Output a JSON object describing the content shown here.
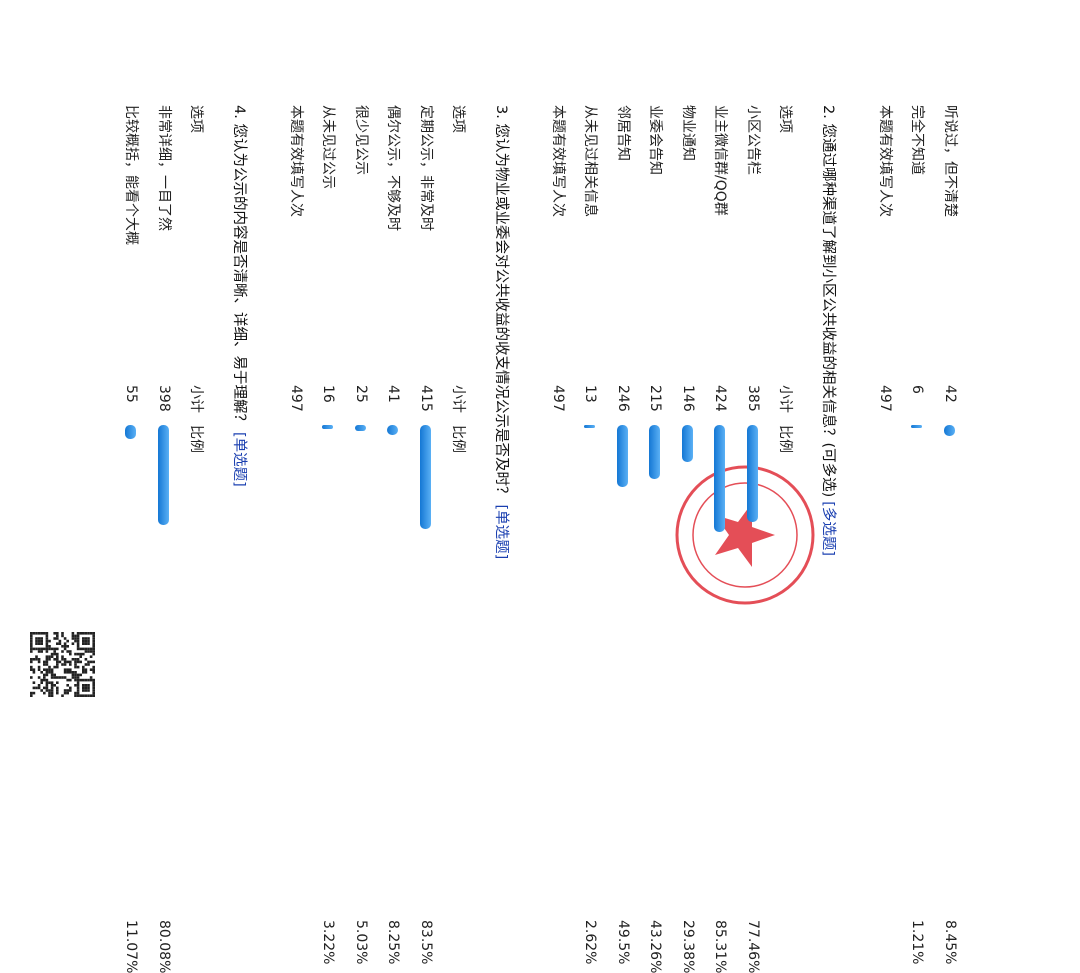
{
  "sections": [
    {
      "rows": [
        {
          "option": "听说过，但不清楚",
          "count": 42,
          "percent": 8.45,
          "percent_label": "8.45%"
        },
        {
          "option": "完全不知道",
          "count": 6,
          "percent": 1.21,
          "percent_label": "1.21%"
        }
      ],
      "total_label": "本题有效填写人次",
      "total": 497
    },
    {
      "title": "2. 您通过哪种渠道了解到小区公共收益的相关信息？(可多选)",
      "tag": "[多选题]",
      "headers": [
        "选项",
        "小计",
        "比例"
      ],
      "rows": [
        {
          "option": "小区公告栏",
          "count": 385,
          "percent": 77.46,
          "percent_label": "77.46%"
        },
        {
          "option": "业主微信群/QQ群",
          "count": 424,
          "percent": 85.31,
          "percent_label": "85.31%"
        },
        {
          "option": "物业通知",
          "count": 146,
          "percent": 29.38,
          "percent_label": "29.38%"
        },
        {
          "option": "业委会告知",
          "count": 215,
          "percent": 43.26,
          "percent_label": "43.26%"
        },
        {
          "option": "邻居告知",
          "count": 246,
          "percent": 49.5,
          "percent_label": "49.5%"
        },
        {
          "option": "从未见过相关信息",
          "count": 13,
          "percent": 2.62,
          "percent_label": "2.62%"
        }
      ],
      "total_label": "本题有效填写人次",
      "total": 497
    },
    {
      "title": "3. 您认为物业或业委会对公共收益的收支情况公示是否及时？",
      "tag": "[单选题]",
      "headers": [
        "选项",
        "小计",
        "比例"
      ],
      "rows": [
        {
          "option": "定期公示，非常及时",
          "count": 415,
          "percent": 83.5,
          "percent_label": "83.5%"
        },
        {
          "option": "偶尔公示，不够及时",
          "count": 41,
          "percent": 8.25,
          "percent_label": "8.25%"
        },
        {
          "option": "很少见公示",
          "count": 25,
          "percent": 5.03,
          "percent_label": "5.03%"
        },
        {
          "option": "从未见过公示",
          "count": 16,
          "percent": 3.22,
          "percent_label": "3.22%"
        }
      ],
      "total_label": "本题有效填写人次",
      "total": 497
    },
    {
      "title": "4. 您认为公示的内容是否清晰、详细、易于理解？",
      "tag": "[单选题]",
      "headers": [
        "选项",
        "小计",
        "比例"
      ],
      "rows": [
        {
          "option": "非常详细，一目了然",
          "count": 398,
          "percent": 80.08,
          "percent_label": "80.08%"
        },
        {
          "option": "比较概括，能看个大概",
          "count": 55,
          "percent": 11.07,
          "percent_label": "11.07%"
        }
      ]
    }
  ]
}
